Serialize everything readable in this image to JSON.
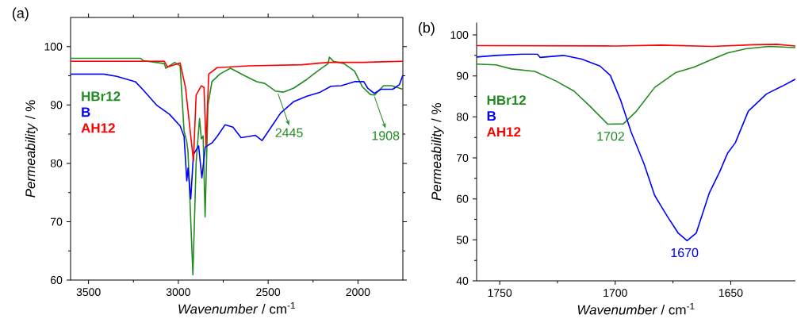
{
  "chart_data": [
    {
      "type": "line",
      "title": "(a)",
      "xlabel": "*Wavenumber* / cm$^{-1}$",
      "ylabel": "*Permeability* / %",
      "xlim": [
        3600,
        1750
      ],
      "ylim": [
        60,
        105
      ],
      "xticks": [
        3500,
        3000,
        2500,
        2000
      ],
      "yticks": [
        60,
        70,
        80,
        90,
        100
      ],
      "legend": "left",
      "series": [
        {
          "name": "HBr12",
          "color": "#228b22",
          "x": [
            3600,
            3210,
            3196,
            3078,
            3070,
            3020,
            2990,
            2968,
            2953,
            2946,
            2919,
            2901,
            2882,
            2872,
            2862,
            2851,
            2835,
            2813,
            2769,
            2710,
            2637,
            2563,
            2519,
            2460,
            2416,
            2357,
            2284,
            2225,
            2166,
            2159,
            2137,
            2078,
            2019,
            1975,
            1931,
            1908,
            1857,
            1813,
            1750
          ],
          "values": [
            98,
            98,
            97.6,
            97.1,
            96.3,
            97.3,
            96.7,
            85.5,
            83.7,
            81.9,
            60.9,
            80.1,
            87.7,
            84.2,
            84.7,
            70.8,
            90,
            94,
            95.3,
            96.3,
            95.1,
            94,
            93.7,
            92.4,
            92.2,
            92.9,
            94.4,
            95.8,
            97.1,
            98.2,
            97.5,
            97.1,
            95.8,
            93.1,
            91.8,
            91.7,
            93.3,
            93.3,
            92.7
          ]
        },
        {
          "name": "B",
          "color": "#0000ff",
          "x": [
            3600,
            3416,
            3343,
            3240,
            3196,
            3122,
            3049,
            2990,
            2968,
            2953,
            2946,
            2931,
            2916,
            2887,
            2869,
            2850,
            2813,
            2784,
            2740,
            2696,
            2651,
            2607,
            2571,
            2534,
            2490,
            2431,
            2357,
            2284,
            2210,
            2151,
            2093,
            2019,
            1968,
            1946,
            1909,
            1872,
            1806,
            1769,
            1750
          ],
          "values": [
            95.3,
            95.3,
            94.9,
            94,
            92.6,
            90,
            88.4,
            86.4,
            84.6,
            77,
            79.2,
            73.9,
            81.5,
            83,
            77.5,
            82.8,
            83.5,
            84.6,
            86.6,
            86.2,
            84.4,
            84.6,
            84.8,
            83.9,
            85.9,
            88.6,
            90.6,
            91.5,
            92.2,
            93.2,
            93.3,
            94,
            94,
            92.9,
            92,
            92.7,
            92.7,
            93.5,
            95.1
          ]
        },
        {
          "name": "AH12",
          "color": "#ff0000",
          "x": [
            3600,
            3078,
            3060,
            3030,
            2990,
            2960,
            2916,
            2901,
            2872,
            2857,
            2846,
            2831,
            2784,
            2607,
            2313,
            2166,
            1975,
            1750
          ],
          "values": [
            97.5,
            97.5,
            96.5,
            96.8,
            97.2,
            93,
            80.4,
            91.7,
            93.3,
            93,
            83,
            95.3,
            96.4,
            96.7,
            96.9,
            97.3,
            97.3,
            97.5
          ]
        }
      ],
      "annotations": [
        {
          "text": "2445",
          "x": 2445,
          "y": 92.2
        },
        {
          "text": "1908",
          "x": 1908,
          "y": 91.7
        }
      ]
    },
    {
      "type": "line",
      "title": "(b)",
      "xlabel": "*Wavenumber* / cm$^{-1}$",
      "ylabel": "*Permeability* / %",
      "xlim": [
        1760,
        1622
      ],
      "ylim": [
        40,
        103
      ],
      "xticks": [
        1750,
        1700,
        1650
      ],
      "yticks": [
        40,
        50,
        60,
        70,
        80,
        90,
        100
      ],
      "legend": "left",
      "series": [
        {
          "name": "HBr12",
          "color": "#228b22",
          "x": [
            1760,
            1751.7,
            1744.9,
            1734.8,
            1725.8,
            1717.9,
            1711.1,
            1703.2,
            1696.5,
            1690.8,
            1682.9,
            1673.9,
            1666,
            1657,
            1651.4,
            1643.5,
            1633.4,
            1622
          ],
          "values": [
            92.9,
            92.7,
            91.7,
            91.1,
            88.8,
            86.3,
            82.7,
            78.2,
            78.3,
            81.4,
            87.2,
            90.8,
            92.1,
            94.3,
            95.6,
            96.6,
            97.2,
            96.9
          ]
        },
        {
          "name": "B",
          "color": "#0000ff",
          "x": [
            1760,
            1751.7,
            1740.4,
            1733.7,
            1732.5,
            1722.4,
            1714.5,
            1706.6,
            1702.1,
            1697.6,
            1693.1,
            1687.5,
            1682.9,
            1677.3,
            1672.8,
            1668.9,
            1664.9,
            1659.3,
            1654.8,
            1651.4,
            1648,
            1642.4,
            1634.5,
            1627.7,
            1622
          ],
          "values": [
            94.6,
            95,
            95.3,
            95.3,
            94.5,
            95,
            94.1,
            92.4,
            90.1,
            84,
            76.3,
            68.5,
            60.8,
            55.6,
            51.7,
            49.8,
            51.7,
            61.4,
            66.6,
            71.1,
            73.7,
            81.4,
            85.6,
            87.5,
            89.2
          ]
        },
        {
          "name": "AH12",
          "color": "#ff0000",
          "x": [
            1760,
            1700,
            1680,
            1658,
            1640,
            1630,
            1622
          ],
          "values": [
            97.4,
            97.3,
            97.5,
            97.2,
            97.6,
            97.7,
            97.3
          ]
        }
      ],
      "annotations": [
        {
          "text": "1702",
          "x": 1702,
          "y": 78.2
        },
        {
          "text": "1670",
          "x": 1670,
          "y": 49.8
        }
      ]
    }
  ]
}
